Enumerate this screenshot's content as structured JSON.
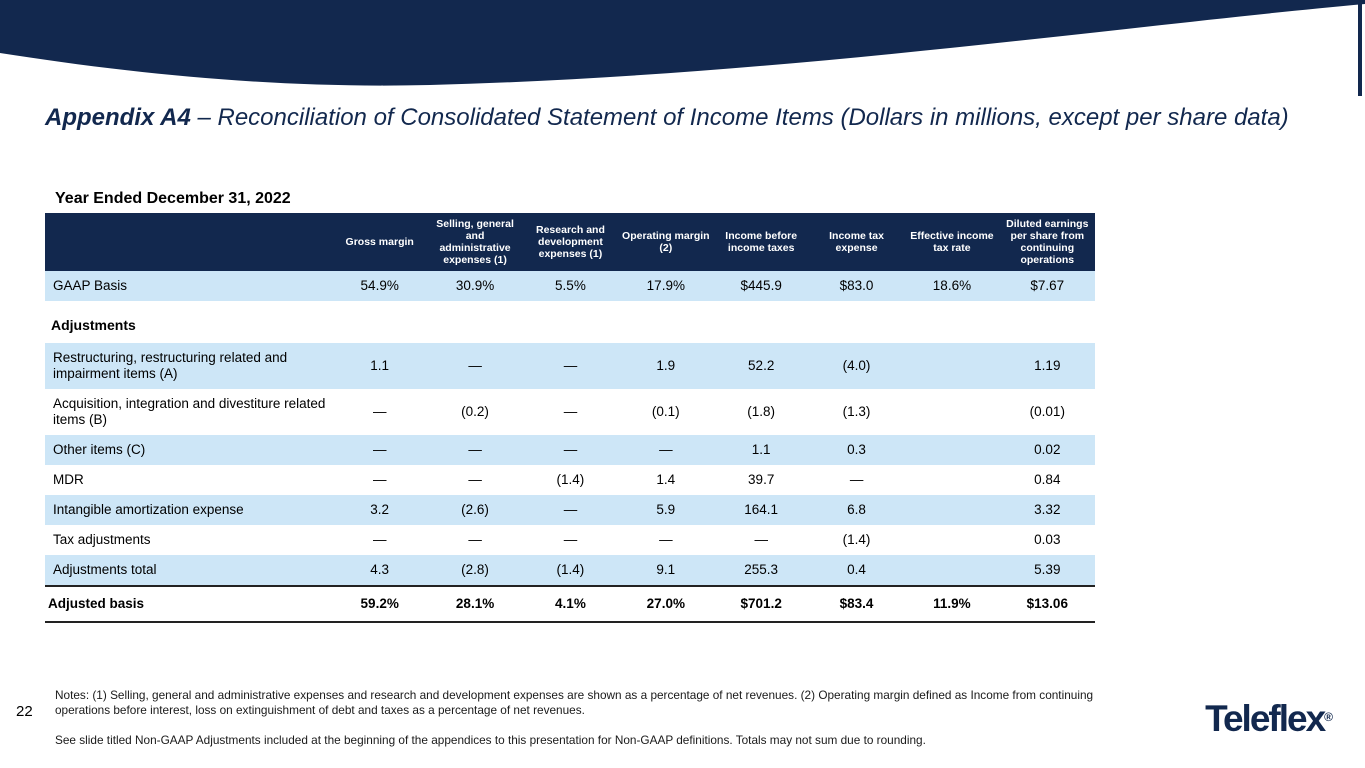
{
  "colors": {
    "navy": "#12284E",
    "row_blue": "#CDE6F7"
  },
  "slide": {
    "title_bold": "Appendix A4",
    "title_rest": " – Reconciliation of Consolidated Statement of Income Items (Dollars in millions, except per share data)",
    "section_heading": "Year Ended December 31, 2022",
    "page_number": "22",
    "logo_text": "Teleflex",
    "logo_mark": "®"
  },
  "table": {
    "columns": [
      "",
      "Gross margin",
      "Selling, general and administrative expenses (1)",
      "Research and development expenses (1)",
      "Operating margin (2)",
      "Income before income taxes",
      "Income tax expense",
      "Effective income tax rate",
      "Diluted earnings per share from continuing operations"
    ],
    "rows": [
      {
        "type": "data",
        "shade": true,
        "label": "GAAP Basis",
        "values": [
          "54.9%",
          "30.9%",
          "5.5%",
          "17.9%",
          "$445.9",
          "$83.0",
          "18.6%",
          "$7.67"
        ]
      },
      {
        "type": "section",
        "label": "Adjustments"
      },
      {
        "type": "data",
        "shade": true,
        "label": "Restructuring, restructuring related and impairment items (A)",
        "values": [
          "1.1",
          "—",
          "—",
          "1.9",
          "52.2",
          "(4.0)",
          "",
          "1.19"
        ]
      },
      {
        "type": "data",
        "shade": false,
        "label": "Acquisition, integration and divestiture related items (B)",
        "values": [
          "—",
          "(0.2)",
          "—",
          "(0.1)",
          "(1.8)",
          "(1.3)",
          "",
          "(0.01)"
        ]
      },
      {
        "type": "data",
        "shade": true,
        "label": "Other items (C)",
        "values": [
          "—",
          "—",
          "—",
          "—",
          "1.1",
          "0.3",
          "",
          "0.02"
        ]
      },
      {
        "type": "data",
        "shade": false,
        "label": "MDR",
        "values": [
          "—",
          "—",
          "(1.4)",
          "1.4",
          "39.7",
          "—",
          "",
          "0.84"
        ]
      },
      {
        "type": "data",
        "shade": true,
        "label": "Intangible amortization expense",
        "values": [
          "3.2",
          "(2.6)",
          "—",
          "5.9",
          "164.1",
          "6.8",
          "",
          "3.32"
        ]
      },
      {
        "type": "data",
        "shade": false,
        "label": "Tax adjustments",
        "values": [
          "—",
          "—",
          "—",
          "—",
          "—",
          "(1.4)",
          "",
          "0.03"
        ]
      },
      {
        "type": "data",
        "shade": true,
        "label": "Adjustments total",
        "values": [
          "4.3",
          "(2.8)",
          "(1.4)",
          "9.1",
          "255.3",
          "0.4",
          "",
          "5.39"
        ]
      },
      {
        "type": "total",
        "shade": false,
        "label": "Adjusted basis",
        "values": [
          "59.2%",
          "28.1%",
          "4.1%",
          "27.0%",
          "$701.2",
          "$83.4",
          "11.9%",
          "$13.06"
        ]
      }
    ]
  },
  "notes": {
    "note1": "Notes: (1) Selling, general and administrative expenses and research and development expenses are shown as a percentage of net revenues.  (2) Operating margin defined as Income from continuing operations before interest, loss on extinguishment of debt and taxes as a percentage of net revenues.",
    "note2": "See slide titled Non-GAAP Adjustments included at the beginning of the appendices to this presentation for Non-GAAP definitions.  Totals may not sum due to rounding."
  }
}
